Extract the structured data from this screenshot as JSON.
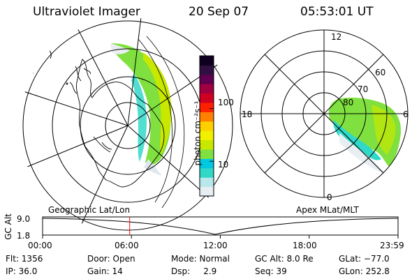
{
  "header": {
    "instrument": "Ultraviolet Imager",
    "date": "20 Sep 07",
    "time": "05:53:01 UT"
  },
  "colorbar": {
    "unit_label": "photon cm⁻²s⁻¹",
    "ticks": [
      {
        "label": "100",
        "value": 100
      },
      {
        "label": "10",
        "value": 10
      }
    ],
    "scale": "log",
    "colors": [
      "#e8eef2",
      "#b8e8ec",
      "#30d8c8",
      "#00c8e0",
      "#80e040",
      "#c8e800",
      "#f0f000",
      "#ffd000",
      "#ff8000",
      "#ff2000",
      "#d00020",
      "#a00040",
      "#600050",
      "#301040",
      "#100020"
    ]
  },
  "geo_panel": {
    "label": "Geographic Lat/Lon"
  },
  "polar_panel": {
    "label": "Apex MLat/MLT",
    "mlt_labels": [
      "12",
      "18",
      "6",
      "0"
    ],
    "mlat_labels": [
      "60",
      "70",
      "80"
    ]
  },
  "altitude_plot": {
    "ylabel": "GC Alt",
    "y_ticks": [
      "9.0",
      "1.8"
    ],
    "x_ticks": [
      "00:00",
      "06:00",
      "12:00",
      "18:00",
      "23:59"
    ],
    "marker_time_hours": 5.88,
    "marker_color": "#ff0000"
  },
  "status": {
    "row1": [
      {
        "key": "flt",
        "text": "Flt: 1356"
      },
      {
        "key": "door",
        "text": "Door: Open"
      },
      {
        "key": "mode",
        "text": "Mode: Normal"
      },
      {
        "key": "gcalt",
        "text": "GC Alt: 8.0 Re"
      },
      {
        "key": "glat",
        "text": "GLat: −77.0"
      }
    ],
    "row2": [
      {
        "key": "ip",
        "text": "IP: 36.0"
      },
      {
        "key": "gain",
        "text": "Gain: 14"
      },
      {
        "key": "dsp",
        "text": "Dsp:     2.9"
      },
      {
        "key": "seq",
        "text": "Seq: 39"
      },
      {
        "key": "glon",
        "text": "GLon: 252.8"
      }
    ]
  }
}
